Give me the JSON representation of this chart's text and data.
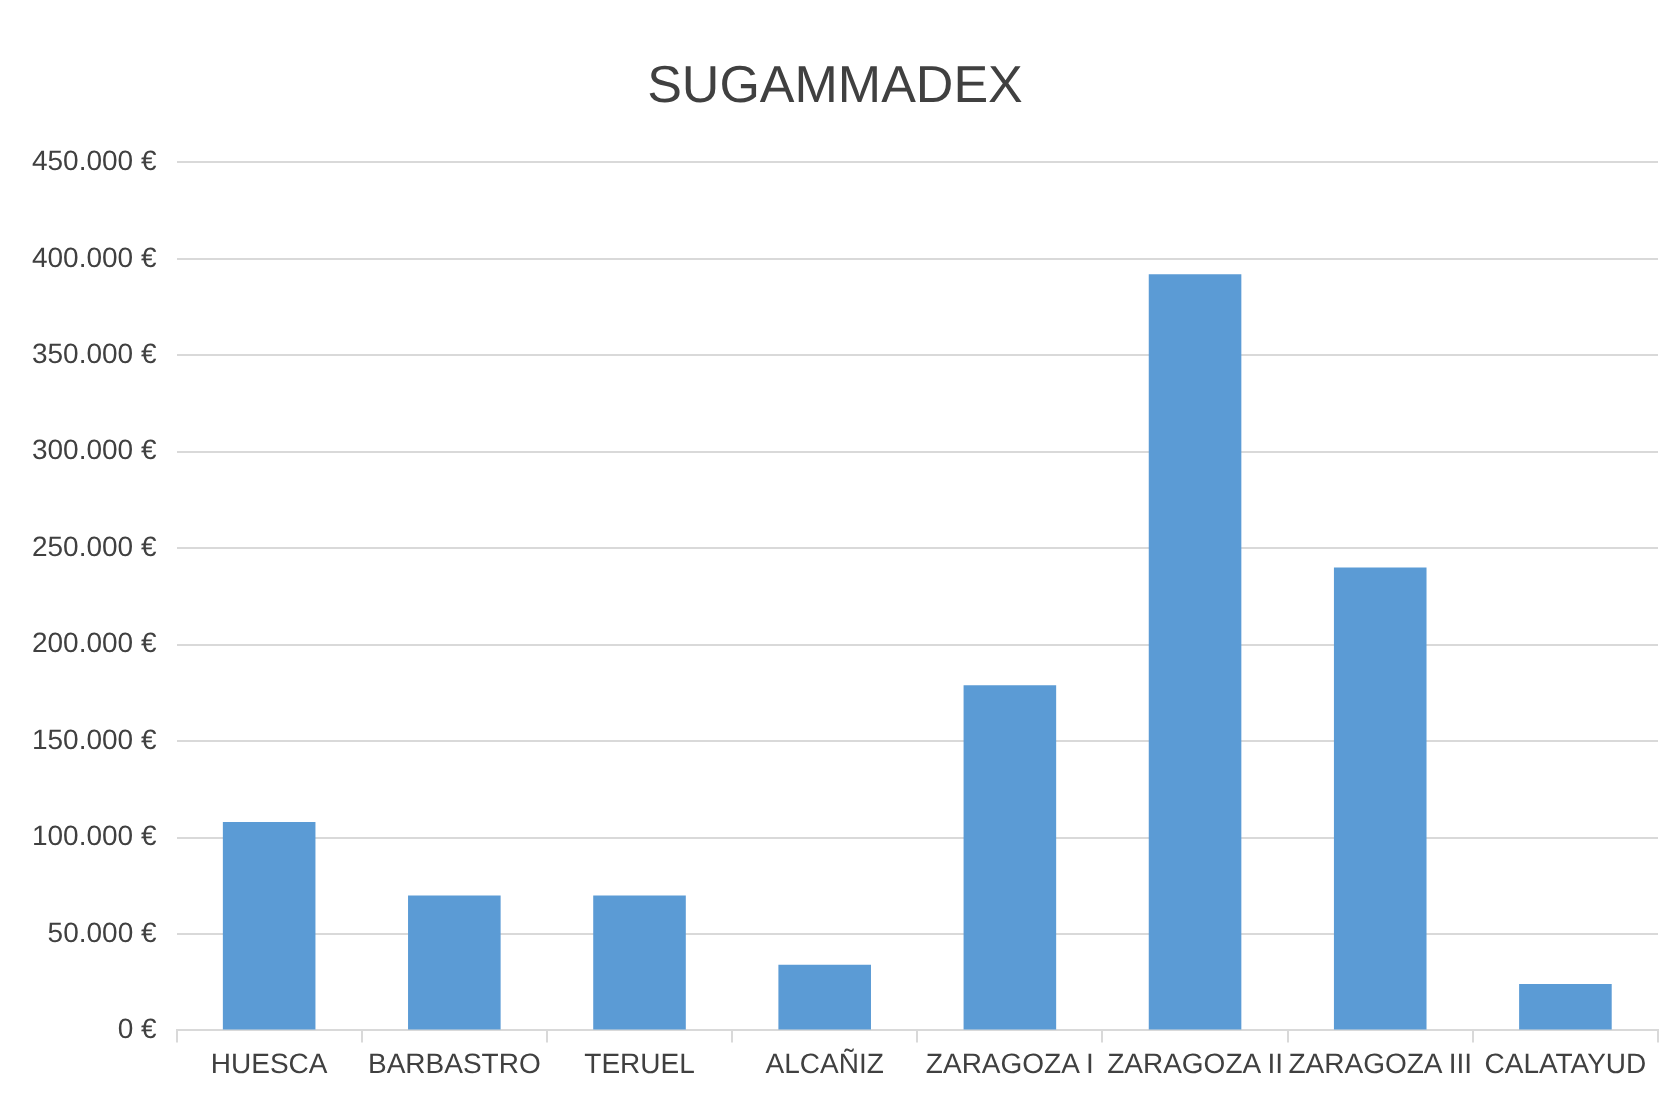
{
  "chart_data": {
    "type": "bar",
    "title": "SUGAMMADEX",
    "categories": [
      "HUESCA",
      "BARBASTRO",
      "TERUEL",
      "ALCAÑIZ",
      "ZARAGOZA I",
      "ZARAGOZA II",
      "ZARAGOZA III",
      "CALATAYUD"
    ],
    "values": [
      108000,
      70000,
      70000,
      34000,
      179000,
      392000,
      240000,
      24000
    ],
    "color": "#5b9bd5",
    "ylim": [
      0,
      450000
    ],
    "yticks": [
      {
        "value": 0,
        "label": "0 €"
      },
      {
        "value": 50000,
        "label": "50.000 €"
      },
      {
        "value": 100000,
        "label": "100.000 €"
      },
      {
        "value": 150000,
        "label": "150.000 €"
      },
      {
        "value": 200000,
        "label": "200.000 €"
      },
      {
        "value": 250000,
        "label": "250.000 €"
      },
      {
        "value": 300000,
        "label": "300.000 €"
      },
      {
        "value": 350000,
        "label": "350.000 €"
      },
      {
        "value": 400000,
        "label": "400.000 €"
      },
      {
        "value": 450000,
        "label": "450.000 €"
      }
    ],
    "grid": "y",
    "legend": false
  }
}
